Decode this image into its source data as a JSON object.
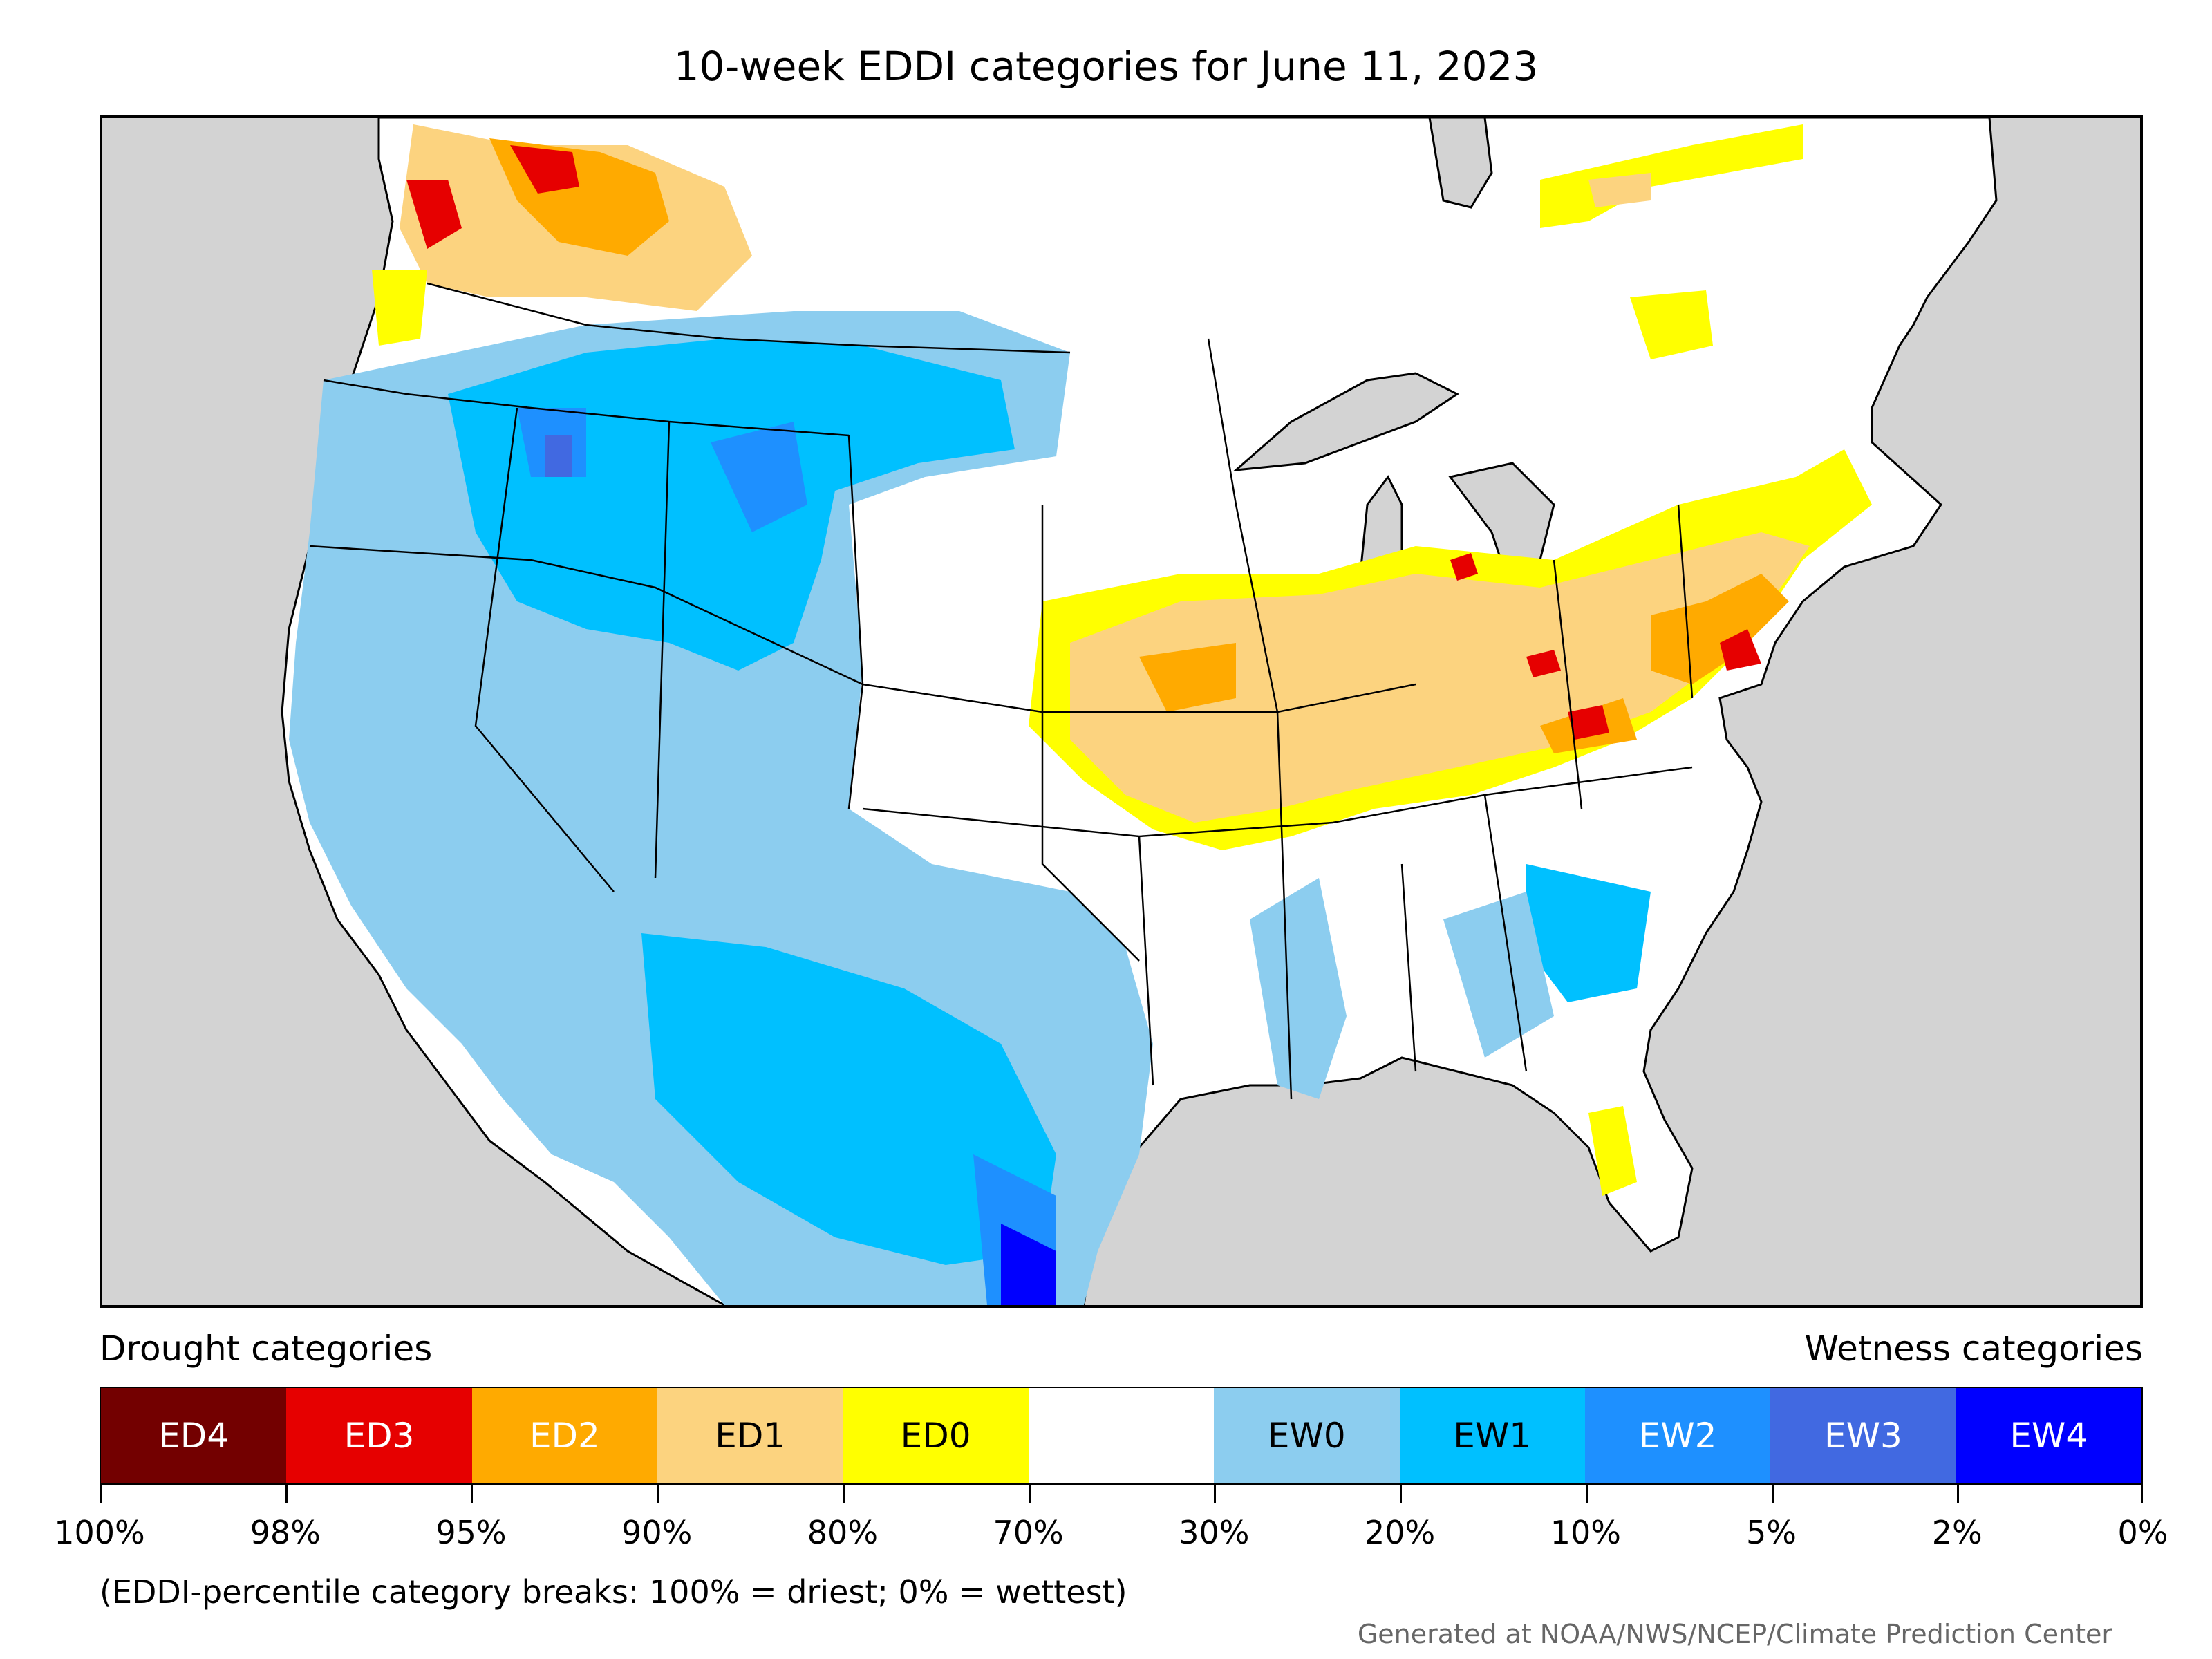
{
  "title": "10-week EDDI categories for June 11, 2023",
  "legend": {
    "left_label": "Drought categories",
    "right_label": "Wetness categories",
    "categories": [
      {
        "label": "ED4",
        "color": "#730000",
        "text_color": "#ffffff"
      },
      {
        "label": "ED3",
        "color": "#e60000",
        "text_color": "#ffffff"
      },
      {
        "label": "ED2",
        "color": "#ffaa00",
        "text_color": "#ffffff"
      },
      {
        "label": "ED1",
        "color": "#fcd37f",
        "text_color": "#000000"
      },
      {
        "label": "ED0",
        "color": "#ffff00",
        "text_color": "#000000"
      },
      {
        "label": "",
        "color": "#ffffff",
        "text_color": "#000000"
      },
      {
        "label": "EW0",
        "color": "#8ccdef",
        "text_color": "#000000"
      },
      {
        "label": "EW1",
        "color": "#00c0ff",
        "text_color": "#000000"
      },
      {
        "label": "EW2",
        "color": "#1e90ff",
        "text_color": "#ffffff"
      },
      {
        "label": "EW3",
        "color": "#4169e1",
        "text_color": "#ffffff"
      },
      {
        "label": "EW4",
        "color": "#0000ff",
        "text_color": "#ffffff"
      }
    ],
    "breaks": [
      "100%",
      "98%",
      "95%",
      "90%",
      "80%",
      "70%",
      "30%",
      "20%",
      "10%",
      "5%",
      "2%",
      "0%"
    ]
  },
  "note": "(EDDI-percentile category breaks: 100% = driest; 0% = wettest)",
  "credit": "Generated at NOAA/NWS/NCEP/Climate Prediction Center",
  "map": {
    "ocean_color": "#d3d3d3",
    "land_color": "#ffffff",
    "border_color": "#000000"
  }
}
